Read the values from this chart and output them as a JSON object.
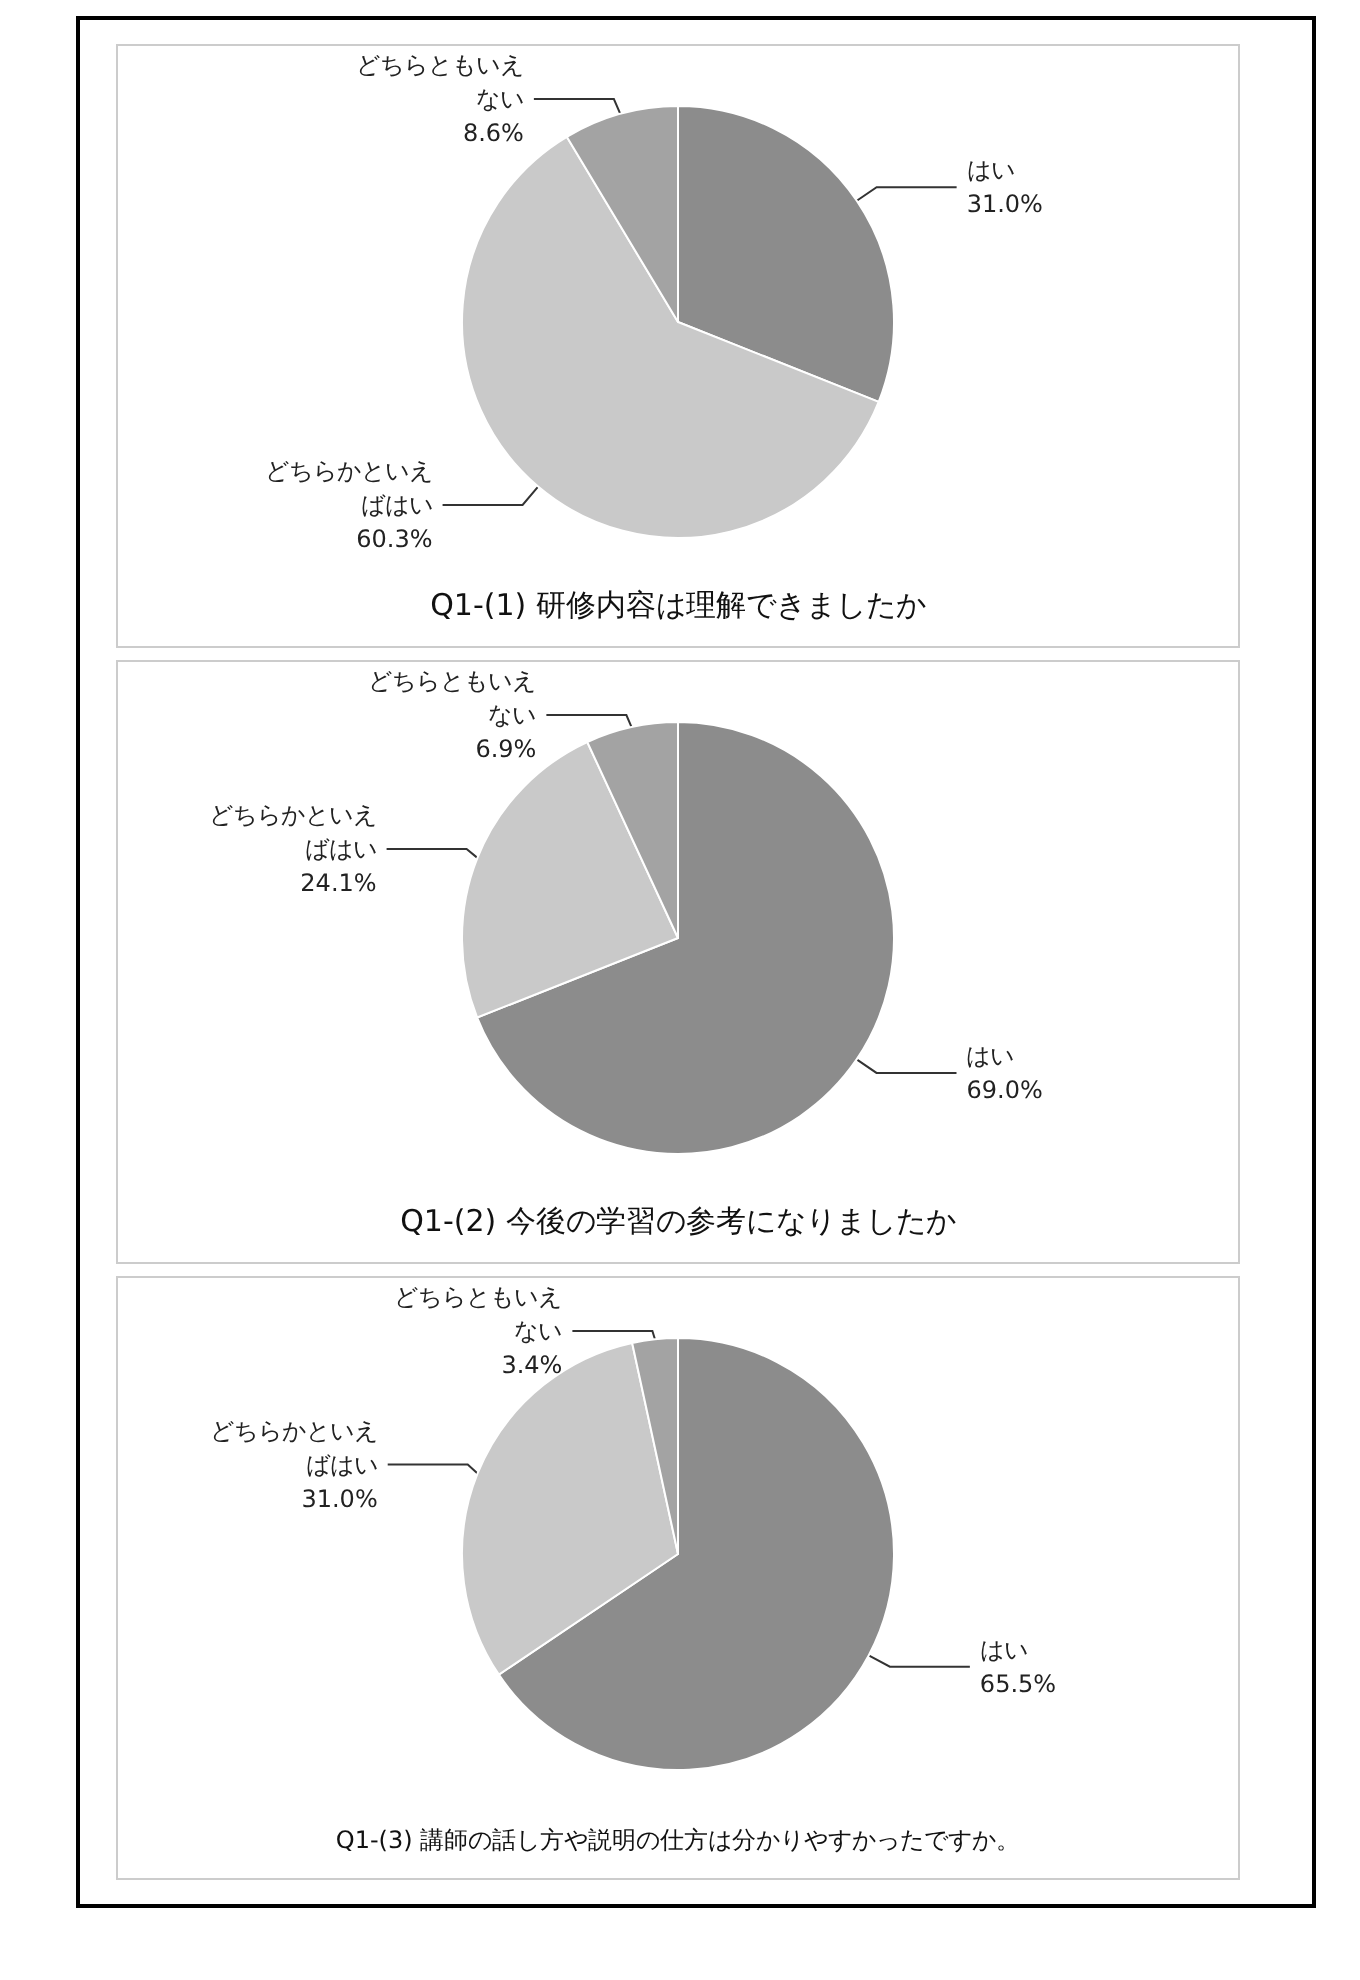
{
  "chart_data": [
    {
      "type": "pie",
      "title": "Q1-(1) 研修内容は理解できましたか",
      "categories": [
        "はい",
        "どちらかといえばはい",
        "どちらともいえない"
      ],
      "values": [
        31.0,
        60.3,
        8.6
      ],
      "value_labels": [
        "31.0%",
        "60.3%",
        "8.6%"
      ],
      "colors": [
        "#8c8c8c",
        "#c9c9c9",
        "#a3a3a3"
      ]
    },
    {
      "type": "pie",
      "title": "Q1-(2) 今後の学習の参考になりましたか",
      "categories": [
        "はい",
        "どちらかといえばはい",
        "どちらともいえない"
      ],
      "values": [
        69.0,
        24.1,
        6.9
      ],
      "value_labels": [
        "69.0%",
        "24.1%",
        "6.9%"
      ],
      "colors": [
        "#8c8c8c",
        "#c9c9c9",
        "#a3a3a3"
      ]
    },
    {
      "type": "pie",
      "title": "Q1-(3) 講師の話し方や説明の仕方は分かりやすかったですか。",
      "categories": [
        "はい",
        "どちらかといえばはい",
        "どちらともいえない"
      ],
      "values": [
        65.5,
        31.0,
        3.4
      ],
      "value_labels": [
        "65.5%",
        "31.0%",
        "3.4%"
      ],
      "colors": [
        "#8c8c8c",
        "#c9c9c9",
        "#a3a3a3"
      ]
    }
  ]
}
